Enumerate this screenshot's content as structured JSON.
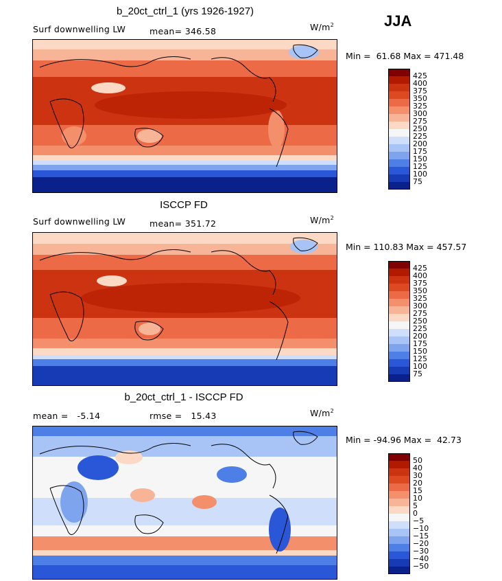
{
  "season": "JJA",
  "panels": [
    {
      "title": "b_20ct_ctrl_1 (yrs 1926-1927)",
      "left_label": "Surf downwelling LW",
      "mid_label": "mean= 346.58",
      "units": "W/m",
      "units_sup": "2",
      "minmax": "Min =  61.68 Max = 471.48",
      "colorbar_ticks": [
        "425",
        "400",
        "375",
        "350",
        "325",
        "300",
        "275",
        "250",
        "225",
        "200",
        "175",
        "150",
        "125",
        "100",
        "75"
      ],
      "colorbar_colors": [
        "#7f0000",
        "#b21a00",
        "#cc3311",
        "#dd4a22",
        "#ec6a45",
        "#f48f6b",
        "#f8b496",
        "#fbd9c4",
        "#f6f6f6",
        "#cfdffb",
        "#a8c3f5",
        "#7fa4ee",
        "#4d7fe6",
        "#2a57d8",
        "#163bb5",
        "#0a208a"
      ]
    },
    {
      "title": "ISCCP FD",
      "left_label": "Surf downwelling LW",
      "mid_label": "mean= 351.72",
      "units": "W/m",
      "units_sup": "2",
      "minmax": "Min = 110.83 Max = 457.57",
      "colorbar_ticks": [
        "425",
        "400",
        "375",
        "350",
        "325",
        "300",
        "275",
        "250",
        "225",
        "200",
        "175",
        "150",
        "125",
        "100",
        "75"
      ],
      "colorbar_colors": [
        "#7f0000",
        "#b21a00",
        "#cc3311",
        "#dd4a22",
        "#ec6a45",
        "#f48f6b",
        "#f8b496",
        "#fbd9c4",
        "#f6f6f6",
        "#cfdffb",
        "#a8c3f5",
        "#7fa4ee",
        "#4d7fe6",
        "#2a57d8",
        "#163bb5",
        "#0a208a"
      ]
    },
    {
      "title": "b_20ct_ctrl_1 - ISCCP FD",
      "left_label": "mean =   -5.14",
      "mid_label": "rmse =   15.43",
      "units": "W/m",
      "units_sup": "2",
      "minmax": "Min = -94.96 Max =  42.73",
      "colorbar_ticks": [
        "50",
        "40",
        "30",
        "20",
        "15",
        "10",
        "5",
        "0",
        "−5",
        "−10",
        "−15",
        "−20",
        "−30",
        "−40",
        "−50"
      ],
      "colorbar_colors": [
        "#7f0000",
        "#b21a00",
        "#cc3311",
        "#dd4a22",
        "#ec6a45",
        "#f48f6b",
        "#f8b496",
        "#fbd9c4",
        "#f6f6f6",
        "#cfdffb",
        "#a8c3f5",
        "#7fa4ee",
        "#4d7fe6",
        "#2a57d8",
        "#163bb5",
        "#0a208a"
      ]
    }
  ]
}
